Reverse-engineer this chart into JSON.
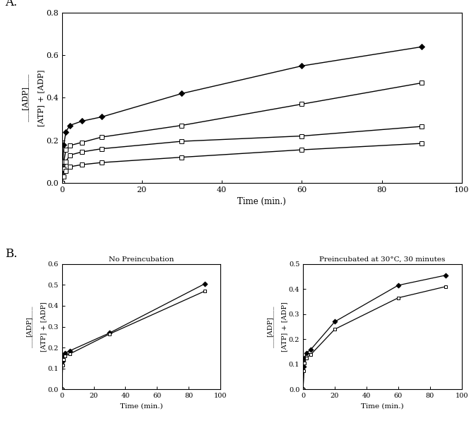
{
  "panel_A": {
    "xlabel": "Time (min.)",
    "xlim": [
      0,
      100
    ],
    "ylim": [
      0.0,
      0.8
    ],
    "yticks": [
      0.0,
      0.2,
      0.4,
      0.6,
      0.8
    ],
    "xticks": [
      0,
      20,
      40,
      60,
      80,
      100
    ],
    "series": [
      {
        "x": [
          0,
          0.5,
          1,
          2,
          5,
          10,
          30,
          60,
          90
        ],
        "y": [
          0.0,
          0.18,
          0.24,
          0.27,
          0.29,
          0.31,
          0.42,
          0.55,
          0.64
        ],
        "marker": "D",
        "markersize": 4,
        "fillstyle": "full",
        "linewidth": 1.0
      },
      {
        "x": [
          0,
          0.5,
          1,
          2,
          5,
          10,
          30,
          60,
          90
        ],
        "y": [
          0.0,
          0.1,
          0.155,
          0.175,
          0.19,
          0.215,
          0.27,
          0.37,
          0.47
        ],
        "marker": "s",
        "markersize": 4,
        "fillstyle": "none",
        "linewidth": 1.0
      },
      {
        "x": [
          0,
          0.5,
          1,
          2,
          5,
          10,
          30,
          60,
          90
        ],
        "y": [
          0.0,
          0.065,
          0.1,
          0.13,
          0.145,
          0.16,
          0.195,
          0.22,
          0.265
        ],
        "marker": "s",
        "markersize": 4,
        "fillstyle": "none",
        "linewidth": 1.0
      },
      {
        "x": [
          0,
          0.5,
          1,
          2,
          5,
          10,
          30,
          60,
          90
        ],
        "y": [
          0.0,
          0.03,
          0.055,
          0.075,
          0.085,
          0.095,
          0.12,
          0.155,
          0.185
        ],
        "marker": "s",
        "markersize": 4,
        "fillstyle": "none",
        "linewidth": 1.0
      }
    ]
  },
  "panel_B_left": {
    "title": "No Preincubation",
    "xlabel": "Time (min.)",
    "xlim": [
      0,
      100
    ],
    "ylim": [
      0.0,
      0.6
    ],
    "yticks": [
      0.0,
      0.1,
      0.2,
      0.3,
      0.4,
      0.5,
      0.6
    ],
    "xticks": [
      0,
      20,
      40,
      60,
      80,
      100
    ],
    "series": [
      {
        "x": [
          0,
          0.5,
          1,
          2,
          5,
          30,
          90
        ],
        "y": [
          0.0,
          0.135,
          0.16,
          0.175,
          0.185,
          0.27,
          0.505
        ],
        "marker": "D",
        "markersize": 3.5,
        "fillstyle": "full",
        "linewidth": 0.9
      },
      {
        "x": [
          0,
          0.5,
          1,
          2,
          5,
          30,
          90
        ],
        "y": [
          0.0,
          0.115,
          0.145,
          0.16,
          0.17,
          0.265,
          0.47
        ],
        "marker": "s",
        "markersize": 3.5,
        "fillstyle": "none",
        "linewidth": 0.9
      }
    ]
  },
  "panel_B_right": {
    "title": "Preincubated at 30°C, 30 minutes",
    "xlabel": "Time (min.)",
    "xlim": [
      0,
      100
    ],
    "ylim": [
      0.0,
      0.5
    ],
    "yticks": [
      0.0,
      0.1,
      0.2,
      0.3,
      0.4,
      0.5
    ],
    "xticks": [
      0,
      20,
      40,
      60,
      80,
      100
    ],
    "series": [
      {
        "x": [
          0,
          0.5,
          1,
          2,
          5,
          20,
          60,
          90
        ],
        "y": [
          0.0,
          0.09,
          0.125,
          0.145,
          0.16,
          0.27,
          0.415,
          0.455
        ],
        "marker": "D",
        "markersize": 3.5,
        "fillstyle": "full",
        "linewidth": 0.9
      },
      {
        "x": [
          0,
          0.5,
          1,
          2,
          5,
          20,
          60,
          90
        ],
        "y": [
          0.0,
          0.075,
          0.105,
          0.125,
          0.14,
          0.24,
          0.365,
          0.41
        ],
        "marker": "s",
        "markersize": 3.5,
        "fillstyle": "none",
        "linewidth": 0.9
      }
    ]
  },
  "label_A": "A.",
  "label_B": "B."
}
